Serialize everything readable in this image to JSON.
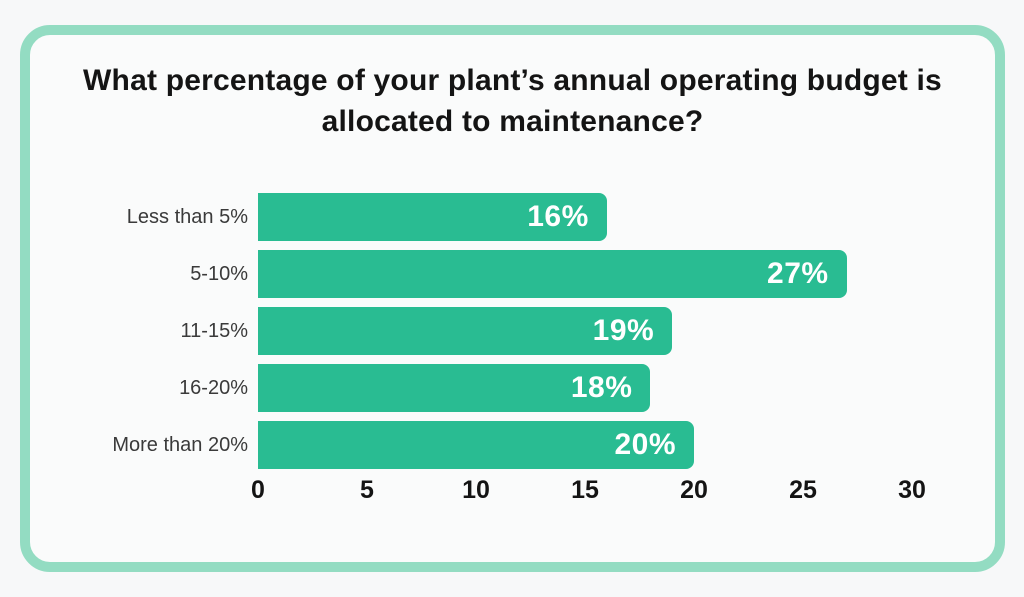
{
  "page": {
    "background": "#f7f8f9"
  },
  "card": {
    "border_color": "#93dcc2",
    "background": "#fafbfb"
  },
  "title": "What percentage of your plant’s annual operating budget is allocated to maintenance?",
  "chart_data": {
    "type": "bar",
    "orientation": "horizontal",
    "title": "What percentage of your plant’s annual operating budget is allocated to maintenance?",
    "categories": [
      "Less than 5%",
      "5-10%",
      "11-15%",
      "16-20%",
      "More than 20%"
    ],
    "values": [
      16,
      27,
      19,
      18,
      20
    ],
    "value_labels": [
      "16%",
      "27%",
      "19%",
      "18%",
      "20%"
    ],
    "xlabel": "",
    "ylabel": "",
    "xlim": [
      0,
      30
    ],
    "x_ticks": [
      0,
      5,
      10,
      15,
      20,
      25,
      30
    ],
    "bar_color": "#29bc92",
    "value_label_color": "#ffffff",
    "grid": false,
    "legend": false
  }
}
